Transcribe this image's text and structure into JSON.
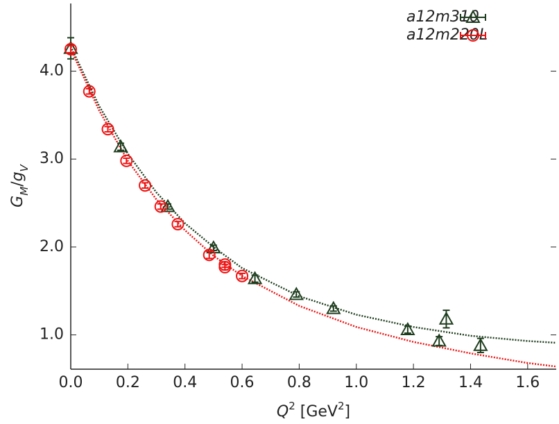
{
  "chart_data": {
    "type": "scatter",
    "x_label_parts": [
      {
        "text": "Q",
        "italic": true
      },
      {
        "text": "2",
        "sup": true
      },
      {
        "text": " [GeV"
      },
      {
        "text": "2",
        "sup": true
      },
      {
        "text": "]"
      }
    ],
    "y_label_parts": [
      {
        "text": "G",
        "italic": true
      },
      {
        "text": "M",
        "sub": true,
        "italic": true
      },
      {
        "text": "/"
      },
      {
        "text": "g",
        "italic": true
      },
      {
        "text": "V",
        "sub": true,
        "italic": true
      }
    ],
    "xlim": [
      0,
      1.7
    ],
    "ylim": [
      0.61,
      4.77
    ],
    "xticks": [
      {
        "value": 0,
        "label": "0.0"
      },
      {
        "value": 0.2,
        "label": "0.2"
      },
      {
        "value": 0.4,
        "label": "0.4"
      },
      {
        "value": 0.6,
        "label": "0.6"
      },
      {
        "value": 0.8,
        "label": "0.8"
      },
      {
        "value": 1,
        "label": "1.0"
      },
      {
        "value": 1.2,
        "label": "1.2"
      },
      {
        "value": 1.4,
        "label": "1.4"
      },
      {
        "value": 1.6,
        "label": "1.6"
      }
    ],
    "yticks": [
      {
        "value": 1,
        "label": "1.0"
      },
      {
        "value": 2,
        "label": "2.0"
      },
      {
        "value": 3,
        "label": "3.0"
      },
      {
        "value": 4,
        "label": "4.0"
      }
    ],
    "legend": "top-right",
    "series": [
      {
        "name": "a12m310",
        "color": "#1e3d1e",
        "marker": "triangle",
        "x": [
          0,
          0.175,
          0.34,
          0.5,
          0.645,
          0.79,
          0.92,
          1.18,
          1.29,
          1.315,
          1.435
        ],
        "values": [
          4.26,
          3.14,
          2.46,
          1.99,
          1.64,
          1.46,
          1.3,
          1.06,
          0.93,
          1.18,
          0.88
        ],
        "errors": [
          0.12,
          0.04,
          0.03,
          0.03,
          0.04,
          0.03,
          0.03,
          0.04,
          0.05,
          0.1,
          0.08
        ]
      },
      {
        "name": "a12m220L",
        "color": "#ee1111",
        "marker": "circle",
        "x": [
          0,
          0.065,
          0.13,
          0.195,
          0.26,
          0.315,
          0.375,
          0.485,
          0.54,
          0.54,
          0.6
        ],
        "values": [
          4.25,
          3.77,
          3.34,
          2.98,
          2.7,
          2.46,
          2.26,
          1.91,
          1.8,
          1.77,
          1.67
        ],
        "errors": [
          0.04,
          0.03,
          0.03,
          0.03,
          0.03,
          0.03,
          0.03,
          0.04,
          0.03,
          0.03,
          0.03
        ]
      }
    ],
    "fit_lines": [
      {
        "color": "#1e3d1e",
        "x": [
          0,
          0.1,
          0.2,
          0.3,
          0.4,
          0.5,
          0.6,
          0.8,
          1,
          1.2,
          1.4,
          1.6,
          1.7
        ],
        "values": [
          4.28,
          3.6,
          3.06,
          2.62,
          2.27,
          2.0,
          1.76,
          1.44,
          1.23,
          1.09,
          0.99,
          0.93,
          0.91
        ]
      },
      {
        "color": "#ee1111",
        "x": [
          0,
          0.1,
          0.2,
          0.3,
          0.4,
          0.5,
          0.6,
          0.8,
          1,
          1.2,
          1.4,
          1.6,
          1.7
        ],
        "values": [
          4.25,
          3.55,
          2.98,
          2.54,
          2.19,
          1.9,
          1.67,
          1.33,
          1.09,
          0.92,
          0.79,
          0.68,
          0.64
        ]
      }
    ]
  }
}
